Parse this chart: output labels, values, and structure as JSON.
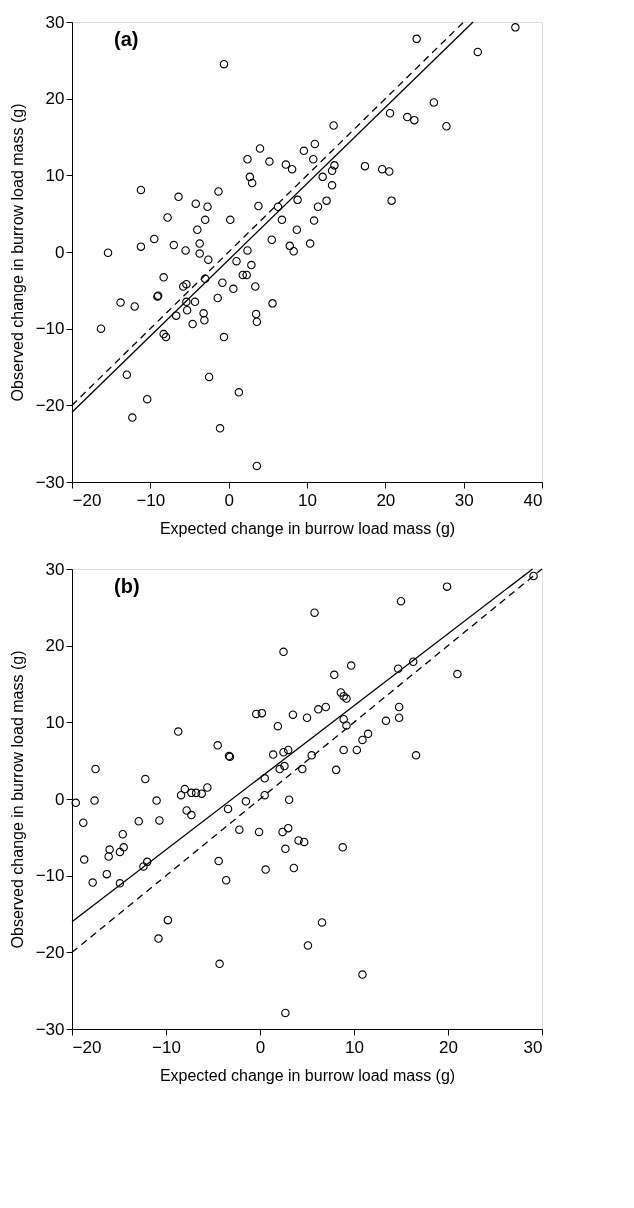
{
  "chart_data": [
    {
      "type": "scatter",
      "xlabel": "Expected change in burrow load mass (g)",
      "ylabel": "Observed change in burrow load mass (g)",
      "annotations": [
        "(a)"
      ],
      "xlim": [
        -20,
        40
      ],
      "xticks": [
        -20,
        -10,
        0,
        10,
        20,
        30,
        40
      ],
      "ylim": [
        -30,
        30
      ],
      "yticks": [
        -30,
        -20,
        -10,
        0,
        10,
        20,
        30
      ],
      "grid": false,
      "series": [
        {
          "marker": "circle",
          "color": "#000000",
          "x": [
            36.6,
            24.0,
            31.8,
            -0.6,
            26.2,
            20.6,
            22.8,
            23.7,
            27.8,
            13.4,
            11.0,
            4.0,
            9.6,
            2.4,
            5.2,
            10.8,
            7.3,
            8.1,
            13.5,
            17.4,
            19.6,
            20.5,
            13.2,
            12.0,
            2.7,
            3.0,
            13.2,
            -11.2,
            -1.3,
            -6.4,
            20.8,
            8.8,
            12.5,
            -4.2,
            -2.7,
            3.8,
            6.3,
            11.4,
            -7.8,
            -3.0,
            0.2,
            6.8,
            10.9,
            -4.0,
            8.7,
            -9.5,
            5.5,
            -11.2,
            -7.0,
            -3.7,
            7.8,
            10.4,
            -15.4,
            -5.5,
            -3.7,
            2.4,
            8.3,
            -2.6,
            1.0,
            2.9,
            1.8,
            2.3,
            -8.3,
            -3.0,
            -5.4,
            -5.8,
            -0.8,
            3.4,
            0.6,
            -9.0,
            -9.1,
            -13.8,
            -12.0,
            -5.4,
            -4.3,
            -1.4,
            5.6,
            -5.3,
            -3.2,
            -3.1,
            -6.7,
            3.5,
            3.6,
            -4.6,
            -16.3,
            -8.3,
            -8.0,
            -0.6,
            -13.0,
            -2.5,
            -10.4,
            1.3,
            -12.3,
            -1.1,
            3.6
          ],
          "values": [
            29.3,
            27.8,
            26.1,
            24.5,
            19.5,
            18.1,
            17.6,
            17.2,
            16.4,
            16.5,
            14.1,
            13.5,
            13.2,
            12.1,
            11.8,
            12.1,
            11.4,
            10.8,
            11.3,
            11.2,
            10.8,
            10.5,
            10.6,
            9.8,
            9.8,
            9.0,
            8.7,
            8.1,
            7.9,
            7.2,
            6.7,
            6.8,
            6.7,
            6.3,
            5.9,
            6.0,
            5.9,
            5.9,
            4.5,
            4.2,
            4.2,
            4.2,
            4.1,
            2.9,
            2.9,
            1.7,
            1.6,
            0.7,
            0.9,
            1.1,
            0.8,
            1.1,
            -0.1,
            0.2,
            -0.2,
            0.2,
            0.1,
            -1.0,
            -1.2,
            -1.7,
            -3.0,
            -3.0,
            -3.3,
            -3.5,
            -4.2,
            -4.5,
            -4.0,
            -4.5,
            -4.8,
            -5.7,
            -5.8,
            -6.6,
            -7.1,
            -6.5,
            -6.5,
            -6.0,
            -6.7,
            -7.6,
            -8.0,
            -8.9,
            -8.3,
            -8.1,
            -9.1,
            -9.4,
            -10.0,
            -10.7,
            -11.1,
            -11.1,
            -16.0,
            -16.3,
            -19.2,
            -18.3,
            -21.6,
            -23.0,
            -27.9
          ]
        },
        {
          "type": "line",
          "color": "#000000",
          "line_style": "solid",
          "x": [
            -20,
            31.2
          ],
          "values": [
            -20.9,
            30.0
          ]
        },
        {
          "type": "line",
          "color": "#000000",
          "line_style": "dashed",
          "x": [
            -20,
            30
          ],
          "values": [
            -20,
            30
          ]
        }
      ]
    },
    {
      "type": "scatter",
      "xlabel": "Expected change in burrow load mass (g)",
      "ylabel": "Observed change in burrow load mass (g)",
      "annotations": [
        "(b)"
      ],
      "xlim": [
        -20,
        30
      ],
      "xticks": [
        -20,
        -10,
        0,
        10,
        20,
        30
      ],
      "ylim": [
        -30,
        30
      ],
      "yticks": [
        -30,
        -20,
        -10,
        0,
        10,
        20,
        30
      ],
      "grid": false,
      "series": [
        {
          "marker": "circle",
          "color": "#000000",
          "x": [
            29.1,
            19.9,
            15.0,
            5.8,
            2.5,
            16.3,
            21.0,
            14.7,
            9.7,
            7.9,
            8.6,
            8.9,
            9.2,
            14.8,
            7.0,
            6.2,
            14.8,
            -0.4,
            0.2,
            3.5,
            5.0,
            8.9,
            13.4,
            9.2,
            1.9,
            11.5,
            10.9,
            -8.7,
            8.9,
            10.3,
            16.6,
            -4.5,
            -3.3,
            -3.2,
            1.4,
            2.5,
            3.0,
            5.5,
            2.1,
            2.6,
            4.5,
            8.1,
            -17.5,
            -12.2,
            0.5,
            -5.6,
            -8.0,
            -8.4,
            -7.3,
            -6.8,
            -6.2,
            0.5,
            3.1,
            -1.5,
            -19.6,
            -17.6,
            -11.0,
            -3.4,
            -7.8,
            -7.3,
            -18.8,
            -12.9,
            -10.7,
            -2.2,
            -0.1,
            2.4,
            3.0,
            4.1,
            4.7,
            2.7,
            8.8,
            -14.6,
            -18.7,
            -16.0,
            -16.1,
            -14.9,
            -14.5,
            -12.0,
            -12.4,
            -16.3,
            -17.8,
            -14.9,
            -4.4,
            -3.6,
            0.6,
            3.6,
            -9.8,
            -10.8,
            6.6,
            5.1,
            -4.3,
            10.9,
            2.7
          ],
          "values": [
            29.1,
            27.7,
            25.8,
            24.3,
            19.2,
            17.9,
            16.3,
            17.0,
            17.4,
            16.2,
            13.9,
            13.4,
            13.1,
            12.0,
            12.0,
            11.7,
            10.6,
            11.1,
            11.2,
            11.0,
            10.6,
            10.4,
            10.2,
            9.6,
            9.5,
            8.5,
            7.7,
            8.8,
            6.4,
            6.4,
            5.7,
            7.0,
            5.6,
            5.5,
            5.8,
            6.1,
            6.4,
            5.7,
            3.9,
            4.3,
            3.9,
            3.8,
            3.9,
            2.6,
            2.7,
            1.5,
            1.3,
            0.5,
            0.8,
            0.8,
            0.7,
            0.5,
            -0.1,
            -0.3,
            -0.5,
            -0.2,
            -0.2,
            -1.3,
            -1.5,
            -2.1,
            -3.1,
            -2.9,
            -2.8,
            -4.0,
            -4.3,
            -4.3,
            -3.8,
            -5.4,
            -5.6,
            -6.5,
            -6.3,
            -4.6,
            -7.9,
            -6.6,
            -7.5,
            -6.9,
            -6.3,
            -8.2,
            -8.8,
            -9.8,
            -10.9,
            -11.0,
            -8.1,
            -10.6,
            -9.2,
            -9.0,
            -15.8,
            -18.2,
            -16.1,
            -19.1,
            -21.5,
            -22.9,
            -27.9
          ]
        },
        {
          "type": "line",
          "color": "#000000",
          "line_style": "solid",
          "x": [
            -20,
            29.0
          ],
          "values": [
            -16.0,
            30.0
          ]
        },
        {
          "type": "line",
          "color": "#000000",
          "line_style": "dashed",
          "x": [
            -20,
            30
          ],
          "values": [
            -20,
            30
          ]
        }
      ]
    }
  ]
}
